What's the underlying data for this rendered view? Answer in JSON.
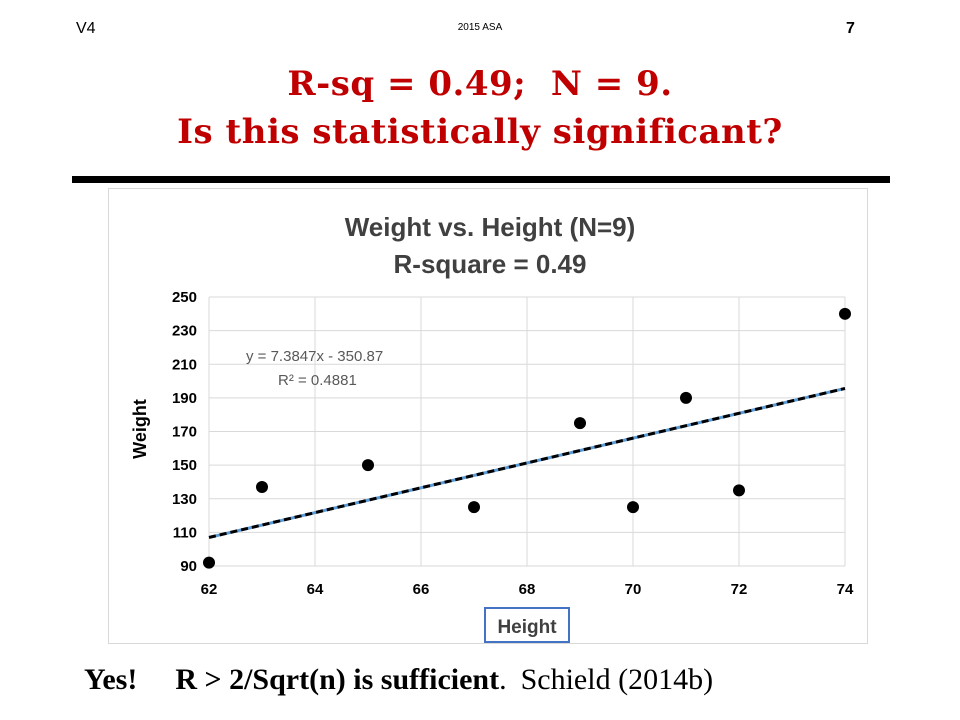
{
  "header": {
    "version": "V4",
    "event": "2015 ASA",
    "page_number": "7"
  },
  "slide": {
    "title_line1": "R-sq = 0.49;  N = 9.",
    "title_line2": "Is this statistically significant?",
    "footer_yes": "Yes!",
    "footer_rule": "R > 2/Sqrt(n) is sufficient",
    "footer_period": ".",
    "footer_citation": "Schield (2014b)"
  },
  "colors": {
    "title": "#c00000",
    "trendline": "#5b9bd5",
    "points": "#000000",
    "grid": "#d9d9d9",
    "xlabel_box": "#4472c4"
  },
  "chart_data": {
    "type": "scatter",
    "title": "Weight vs. Height (N=9)",
    "subtitle": "R-square = 0.49",
    "xlabel": "Height",
    "ylabel": "Weight",
    "xlim": [
      62,
      74
    ],
    "ylim": [
      90,
      250
    ],
    "x_ticks": [
      62,
      64,
      66,
      68,
      70,
      72,
      74
    ],
    "y_ticks": [
      90,
      110,
      130,
      150,
      170,
      190,
      210,
      230,
      250
    ],
    "grid": true,
    "points": [
      {
        "x": 62,
        "y": 92
      },
      {
        "x": 63,
        "y": 137
      },
      {
        "x": 65,
        "y": 150
      },
      {
        "x": 67,
        "y": 125
      },
      {
        "x": 69,
        "y": 175
      },
      {
        "x": 70,
        "y": 125
      },
      {
        "x": 71,
        "y": 190
      },
      {
        "x": 72,
        "y": 135
      },
      {
        "x": 74,
        "y": 240
      }
    ],
    "trendline": {
      "type": "linear",
      "slope": 7.3847,
      "intercept": -350.87,
      "equation_label": "y = 7.3847x - 350.87",
      "r2_label": "R² = 0.4881"
    }
  }
}
